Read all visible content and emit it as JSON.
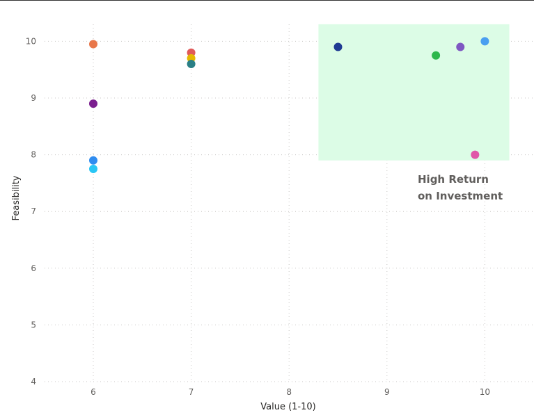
{
  "chart_data": {
    "type": "scatter",
    "xlabel": "Value (1-10)",
    "ylabel": "Feasibility",
    "xlim": [
      5.5,
      10.5
    ],
    "ylim": [
      4,
      10.4
    ],
    "x_ticks": [
      6,
      7,
      8,
      9,
      10
    ],
    "y_ticks": [
      4,
      5,
      6,
      7,
      8,
      9,
      10
    ],
    "grid": "dotted",
    "highlight_region": {
      "x": [
        8.3,
        10.25
      ],
      "y": [
        7.9,
        10.3
      ],
      "color": "#dcfce6",
      "label_lines": [
        "High Return",
        "on Investment"
      ]
    },
    "points": [
      {
        "x": 6,
        "y": 9.95,
        "color": "#e8774a"
      },
      {
        "x": 6,
        "y": 8.9,
        "color": "#7b1f8f"
      },
      {
        "x": 6,
        "y": 7.9,
        "color": "#2f8cf0"
      },
      {
        "x": 6,
        "y": 7.75,
        "color": "#29c6f5"
      },
      {
        "x": 7,
        "y": 9.8,
        "color": "#e05a5a"
      },
      {
        "x": 7,
        "y": 9.7,
        "color": "#e6b800"
      },
      {
        "x": 7,
        "y": 9.6,
        "color": "#2a7f86"
      },
      {
        "x": 8.5,
        "y": 9.9,
        "color": "#1f3a93"
      },
      {
        "x": 9.5,
        "y": 9.75,
        "color": "#2eb84d"
      },
      {
        "x": 9.75,
        "y": 9.9,
        "color": "#7e57c2"
      },
      {
        "x": 10,
        "y": 10.0,
        "color": "#4a9ff0"
      },
      {
        "x": 9.9,
        "y": 8.0,
        "color": "#e056a8"
      }
    ]
  }
}
